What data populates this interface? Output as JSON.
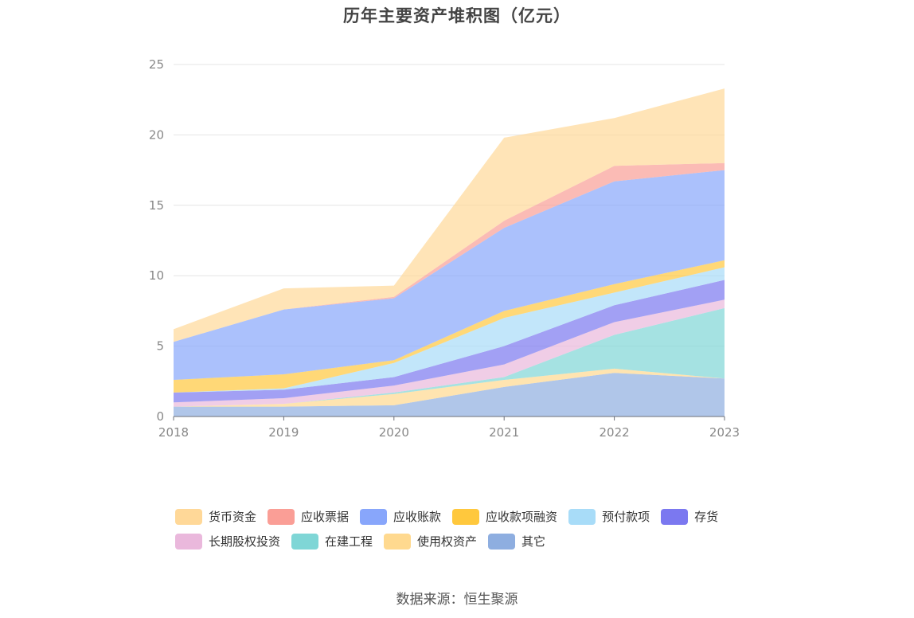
{
  "source_text": "数据来源：恒生聚源",
  "chart_data": {
    "type": "area",
    "stacked": true,
    "title": "历年主要资产堆积图（亿元）",
    "xlabel": "",
    "ylabel": "",
    "categories": [
      "2018",
      "2019",
      "2020",
      "2021",
      "2022",
      "2023"
    ],
    "ylim": [
      0,
      25
    ],
    "yticks": [
      0,
      5,
      10,
      15,
      20,
      25
    ],
    "grid": true,
    "legend_position": "bottom",
    "series": [
      {
        "name": "其它",
        "color": "#8eaee0",
        "values": [
          0.7,
          0.7,
          0.8,
          2.1,
          3.1,
          2.7
        ]
      },
      {
        "name": "使用权资产",
        "color": "#ffd98f",
        "values": [
          0.0,
          0.2,
          0.8,
          0.5,
          0.3,
          0.0
        ]
      },
      {
        "name": "在建工程",
        "color": "#7fd6d6",
        "values": [
          0.0,
          0.0,
          0.1,
          0.2,
          2.4,
          5.0
        ]
      },
      {
        "name": "长期股权投资",
        "color": "#eab8dc",
        "values": [
          0.3,
          0.4,
          0.5,
          0.9,
          0.9,
          0.6
        ]
      },
      {
        "name": "存货",
        "color": "#7b78f0",
        "values": [
          0.7,
          0.6,
          0.6,
          1.3,
          1.2,
          1.4
        ]
      },
      {
        "name": "预付款项",
        "color": "#a8dcf8",
        "values": [
          0.0,
          0.1,
          1.0,
          2.0,
          0.9,
          0.9
        ]
      },
      {
        "name": "应收款项融资",
        "color": "#ffc83d",
        "values": [
          0.9,
          1.0,
          0.2,
          0.5,
          0.6,
          0.5
        ]
      },
      {
        "name": "应收账款",
        "color": "#88a6fb",
        "values": [
          2.7,
          4.6,
          4.4,
          5.9,
          7.3,
          6.4
        ]
      },
      {
        "name": "应收票据",
        "color": "#fa9e96",
        "values": [
          0.0,
          0.0,
          0.1,
          0.5,
          1.1,
          0.5
        ]
      },
      {
        "name": "货币资金",
        "color": "#ffd898",
        "values": [
          0.9,
          1.5,
          0.8,
          5.9,
          3.4,
          5.3
        ]
      }
    ],
    "legend_order": [
      "货币资金",
      "应收票据",
      "应收账款",
      "应收款项融资",
      "预付款项",
      "存货",
      "长期股权投资",
      "在建工程",
      "使用权资产",
      "其它"
    ]
  }
}
